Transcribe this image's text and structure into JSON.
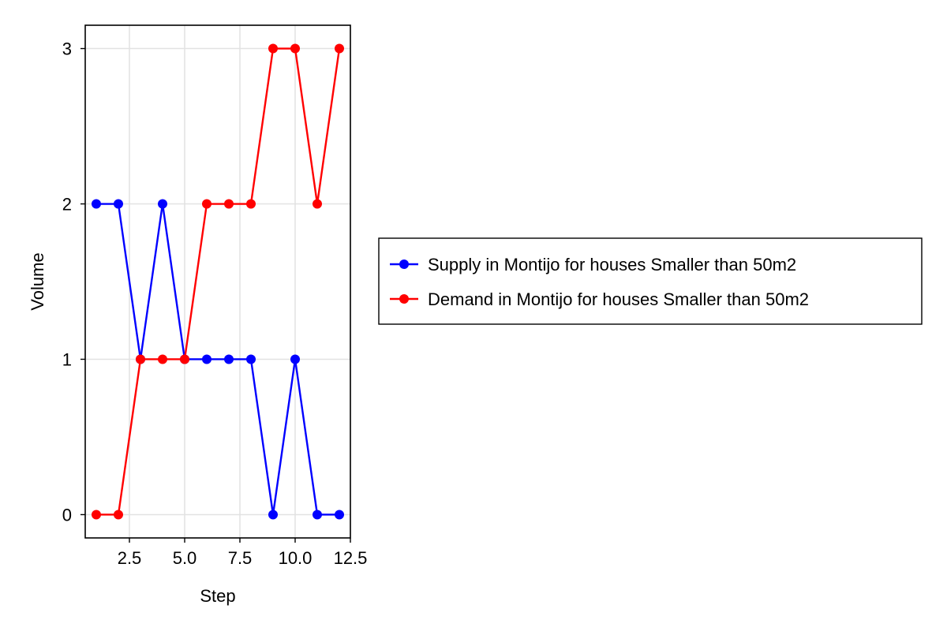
{
  "chart_data": {
    "type": "line",
    "title": "",
    "xlabel": "Step",
    "ylabel": "Volume",
    "xlim": [
      0.5,
      12.5
    ],
    "ylim": [
      -0.15,
      3.15
    ],
    "xticks": [
      2.5,
      5.0,
      7.5,
      10.0,
      12.5
    ],
    "xtick_labels": [
      "2.5",
      "5.0",
      "7.5",
      "10.0",
      "12.5"
    ],
    "yticks": [
      0,
      1,
      2,
      3
    ],
    "ytick_labels": [
      "0",
      "1",
      "2",
      "3"
    ],
    "grid": true,
    "legend_position": "right",
    "x": [
      1,
      2,
      3,
      4,
      5,
      6,
      7,
      8,
      9,
      10,
      11,
      12
    ],
    "series": [
      {
        "name": "Supply in Montijo for houses Smaller than 50m2",
        "color": "#0000ff",
        "marker": "circle",
        "values": [
          2,
          2,
          1,
          2,
          1,
          1,
          1,
          1,
          0,
          1,
          0,
          0
        ]
      },
      {
        "name": "Demand in Montijo for houses Smaller than 50m2",
        "color": "#ff0000",
        "marker": "circle",
        "values": [
          0,
          0,
          1,
          1,
          1,
          2,
          2,
          2,
          3,
          3,
          2,
          3
        ]
      }
    ]
  }
}
